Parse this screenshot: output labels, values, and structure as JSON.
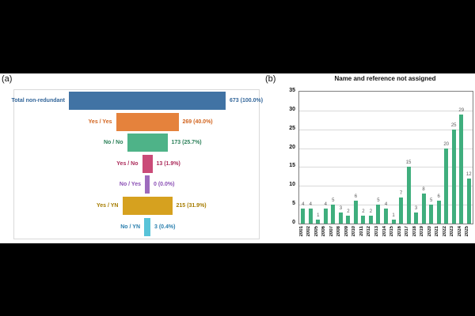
{
  "panels": {
    "a": {
      "tag": "(a)"
    },
    "b": {
      "tag": "(b)"
    }
  },
  "chart_data": [
    {
      "type": "bar",
      "subtype": "funnel-centered-horizontal",
      "title": "",
      "categories": [
        "Total non-redundant",
        "Yes / Yes",
        "No / No",
        "Yes / No",
        "No / Yes",
        "Yes / YN",
        "No / YN"
      ],
      "values": [
        673,
        269,
        173,
        13,
        0,
        215,
        3
      ],
      "value_labels": [
        "673 (100.0%)",
        "269 (40.0%)",
        "173 (25.7%)",
        "13 (1.9%)",
        "0 (0.0%)",
        "215 (31.9%)",
        "3 (0.4%)"
      ],
      "total": 673,
      "bar_colors": [
        "#4173a4",
        "#e5823c",
        "#4eb388",
        "#ca4b78",
        "#9d6bbd",
        "#d6a11f",
        "#58c3d8"
      ],
      "label_colors": [
        "#33669a",
        "#d2641e",
        "#2b8059",
        "#ab2a5a",
        "#8a4fb5",
        "#a67c00",
        "#2a7fae"
      ],
      "layout": {
        "legend": "none",
        "grid": false
      }
    },
    {
      "type": "bar",
      "title": "Name and reference not assigned",
      "categories": [
        "2001",
        "2002",
        "2005",
        "2006",
        "2007",
        "2008",
        "2009",
        "2010",
        "2011",
        "2012",
        "2013",
        "2014",
        "2015",
        "2016",
        "2017",
        "2018",
        "2019",
        "2020",
        "2021",
        "2022",
        "2023",
        "2024",
        "2025"
      ],
      "values": [
        4,
        4,
        1,
        4,
        5,
        3,
        2,
        6,
        2,
        2,
        5,
        4,
        1,
        7,
        15,
        3,
        8,
        5,
        6,
        20,
        25,
        29,
        12
      ],
      "ylim": [
        0,
        35
      ],
      "yticks": [
        0,
        5,
        10,
        15,
        20,
        25,
        30,
        35
      ],
      "xlabel": "",
      "ylabel": "",
      "bar_color": "#3fae7d",
      "value_label_color": "#595959",
      "grid_color": "#d9d9d9",
      "layout": {
        "grid": true,
        "legend": "none",
        "xtick_rotation": 90
      }
    }
  ]
}
